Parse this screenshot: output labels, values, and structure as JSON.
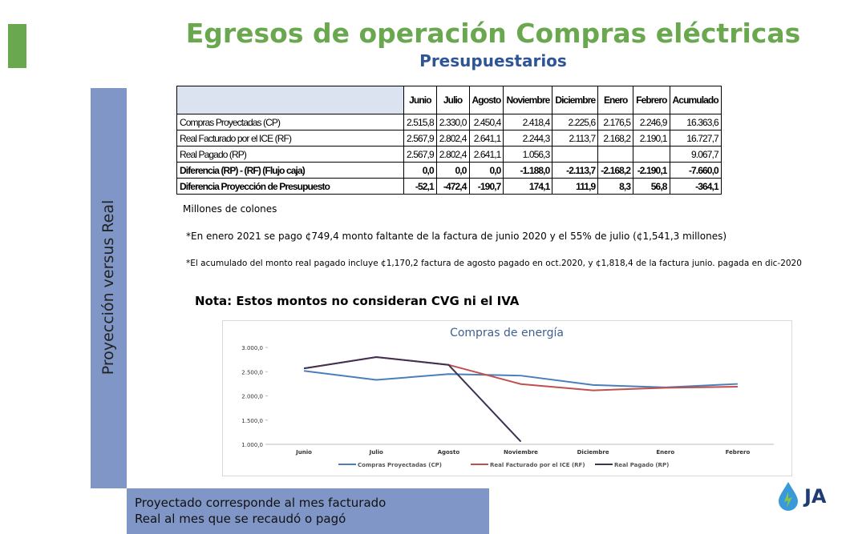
{
  "title": "Egresos de operación Compras eléctricas",
  "subtitle": "Presupuestarios",
  "side_label": "Proyección versus Real",
  "table": {
    "header": [
      "",
      "Junio",
      "Julio",
      "Agosto",
      "Noviembre",
      "Diciembre",
      "Enero",
      "Febrero",
      "Acumulado"
    ],
    "rows": [
      [
        "Compras Proyectadas (CP)",
        "2.515,8",
        "2.330,0",
        "2.450,4",
        "2.418,4",
        "2.225,6",
        "2.176,5",
        "2.246,9",
        "16.363,6"
      ],
      [
        "Real Facturado por el ICE (RF)",
        "2.567,9",
        "2.802,4",
        "2.641,1",
        "2.244,3",
        "2.113,7",
        "2.168,2",
        "2.190,1",
        "16.727,7"
      ],
      [
        "Real Pagado (RP)",
        "2.567,9",
        "2.802,4",
        "2.641,1",
        "1.056,3",
        "",
        "",
        "",
        "9.067,7"
      ],
      [
        "Diferencia (RP) - (RF) (Flujo caja)",
        "0,0",
        "0,0",
        "0,0",
        "-1.188,0",
        "-2.113,7",
        "-2.168,2",
        "-2.190,1",
        "-7.660,0"
      ],
      [
        "Diferencia Proyección de Presupuesto",
        "-52,1",
        "-472,4",
        "-190,7",
        "174,1",
        "111,9",
        "8,3",
        "56,8",
        "-364,1"
      ]
    ]
  },
  "units_note": "Millones de colones",
  "note1": "*En enero 2021 se pago ¢749,4 monto faltante de la factura de junio 2020 y el 55% de julio (¢1,541,3 millones)",
  "note2": "*El acumulado del monto real pagado incluye ¢1,170,2 factura de agosto pagado en oct.2020, y ¢1,818,4 de la factura junio. pagada en dic-2020",
  "note3": "Nota: Estos montos no consideran CVG ni el IVA",
  "chart_data": {
    "type": "line",
    "title": "Compras de energía",
    "categories": [
      "Junio",
      "Julio",
      "Agosto",
      "Noviembre",
      "Diciembre",
      "Enero",
      "Febrero"
    ],
    "series": [
      {
        "name": "Compras Proyectadas (CP)",
        "color": "#4a7ebb",
        "values": [
          2515.8,
          2330.0,
          2450.4,
          2418.4,
          2225.6,
          2176.5,
          2246.9
        ]
      },
      {
        "name": "Real Facturado por el ICE (RF)",
        "color": "#c0504d",
        "values": [
          2567.9,
          2802.4,
          2641.1,
          2244.3,
          2113.7,
          2168.2,
          2190.1
        ]
      },
      {
        "name": "Real Pagado (RP)",
        "color": "#3f3151",
        "values": [
          2567.9,
          2802.4,
          2641.1,
          1056.3,
          null,
          null,
          null
        ]
      }
    ],
    "ylim": [
      1000,
      3000
    ],
    "yticks": [
      {
        "value": 1000,
        "label": "1.000,0"
      },
      {
        "value": 1500,
        "label": "1.500,0"
      },
      {
        "value": 2000,
        "label": "2.000,0"
      },
      {
        "value": 2500,
        "label": "2.500,0"
      },
      {
        "value": 3000,
        "label": "3.000,0"
      }
    ],
    "legend": "bottom"
  },
  "footer": [
    "Proyectado corresponde al mes facturado",
    "Real al mes que se recaudó o pagó"
  ],
  "logo_text": "JA"
}
